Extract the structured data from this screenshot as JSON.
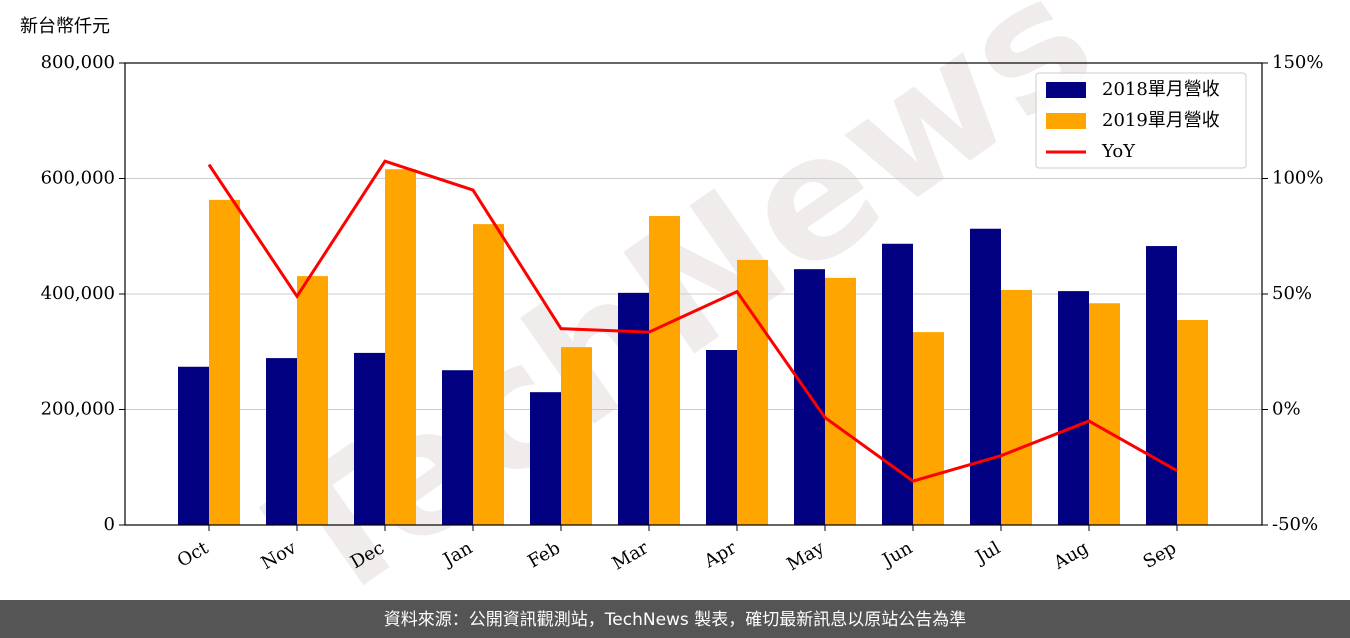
{
  "chart_data": {
    "type": "bar",
    "ylabel": "新台幣仟元",
    "watermark": "TechNews",
    "source": "資料來源：公開資訊觀測站，TechNews 製表，確切最新訊息以原站公告為準",
    "categories": [
      "Oct",
      "Nov",
      "Dec",
      "Jan",
      "Feb",
      "Mar",
      "Apr",
      "May",
      "Jun",
      "Jul",
      "Aug",
      "Sep"
    ],
    "series": [
      {
        "name": "2018單月營收",
        "color": "#000080",
        "values": [
          274000,
          289000,
          298000,
          268000,
          230000,
          402000,
          303000,
          443000,
          487000,
          513000,
          405000,
          483000
        ]
      },
      {
        "name": "2019單月營收",
        "color": "#ffa500",
        "values": [
          563000,
          431000,
          616000,
          521000,
          308000,
          535000,
          459000,
          428000,
          334000,
          407000,
          384000,
          355000
        ]
      },
      {
        "name": "YoY",
        "color": "#ff0000",
        "type": "line",
        "axis": "y2",
        "values": [
          106,
          49,
          107.5,
          95,
          35,
          33.5,
          51,
          -3.5,
          -31,
          -20,
          -5,
          -26.5
        ]
      }
    ],
    "ylim": [
      0,
      800000
    ],
    "yticks": [
      0,
      {
        "value": 200000,
        "label": "200,000"
      },
      {
        "value": 400000,
        "label": "400,000"
      },
      {
        "value": 600000,
        "label": "600,000"
      },
      {
        "value": 800000,
        "label": "800,000"
      }
    ],
    "y2lim": [
      -50,
      150
    ],
    "y2ticks": [
      {
        "value": -50,
        "label": "-50%"
      },
      {
        "value": 0,
        "label": "0%"
      },
      {
        "value": 50,
        "label": "50%"
      },
      {
        "value": 100,
        "label": "100%"
      },
      {
        "value": 150,
        "label": "150%"
      }
    ],
    "grid": true,
    "legend": "upper right"
  }
}
